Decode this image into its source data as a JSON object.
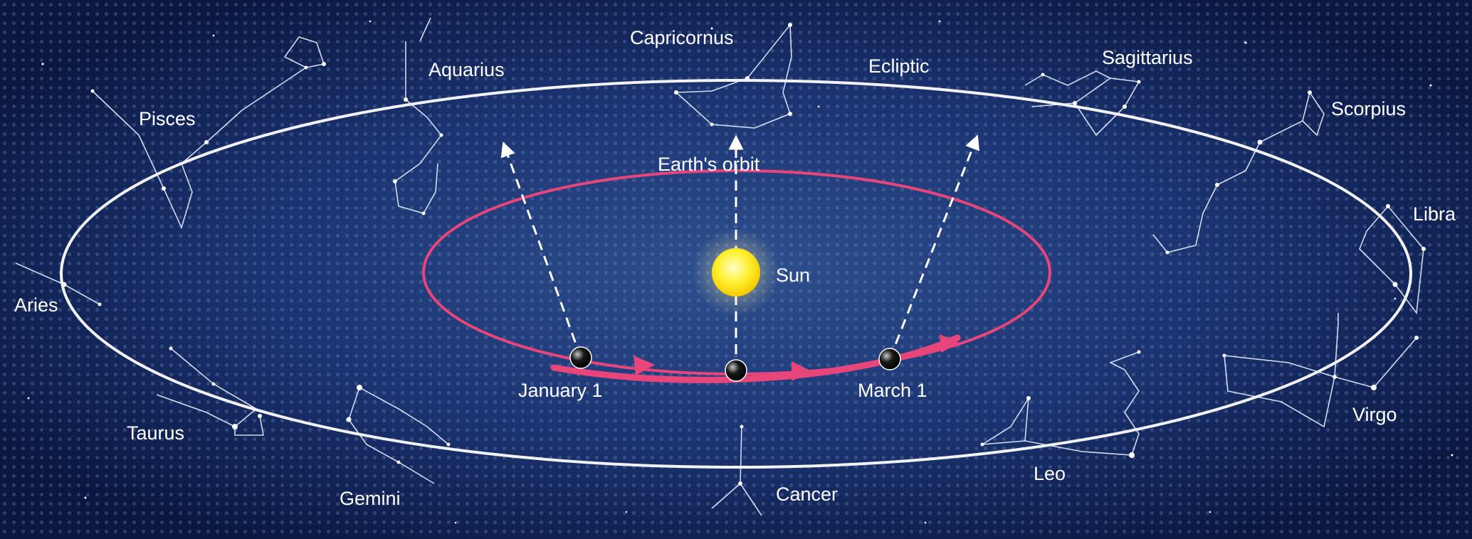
{
  "labels": {
    "ecliptic": "Ecliptic",
    "earths_orbit": "Earth's orbit",
    "sun": "Sun",
    "january": "January 1",
    "march": "March 1"
  },
  "constellations": [
    "Capricornus",
    "Aquarius",
    "Sagittarius",
    "Scorpius",
    "Pisces",
    "Libra",
    "Aries",
    "Virgo",
    "Taurus",
    "Leo",
    "Gemini",
    "Cancer"
  ],
  "colors": {
    "background": "#0c1a44",
    "ecliptic": "#f2f2f2",
    "orbit": "#e8457a",
    "sun": "#ffee33",
    "lines": "#ffffff"
  }
}
